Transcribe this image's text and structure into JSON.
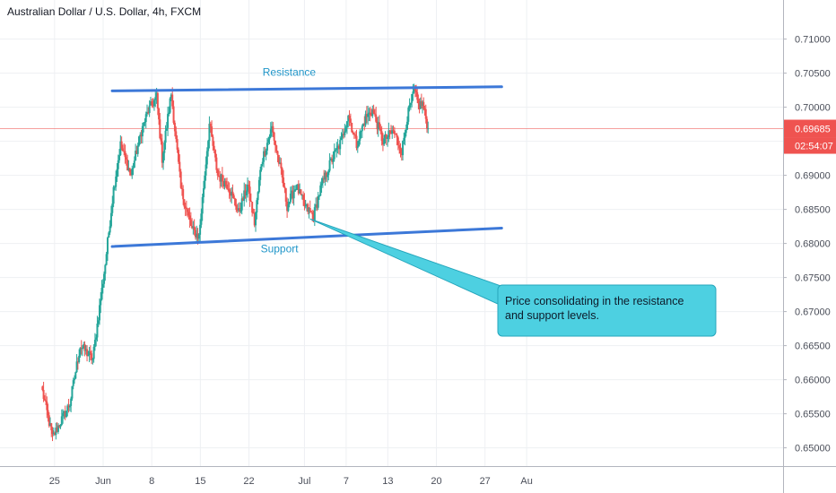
{
  "chart_data": {
    "type": "candlestick",
    "title": "Australian Dollar / U.S. Dollar, 4h, FXCM",
    "ylim": [
      0.646,
      0.7117
    ],
    "y_ticks": [
      "0.65000",
      "0.65500",
      "0.66000",
      "0.66500",
      "0.67000",
      "0.67500",
      "0.68000",
      "0.68500",
      "0.69000",
      "0.69500",
      "0.70000",
      "0.70500",
      "0.71000"
    ],
    "x_ticks": [
      {
        "label": "25",
        "day": -7
      },
      {
        "label": "Jun",
        "day": 0
      },
      {
        "label": "8",
        "day": 7
      },
      {
        "label": "15",
        "day": 14
      },
      {
        "label": "22",
        "day": 21
      },
      {
        "label": "Jul",
        "day": 29
      },
      {
        "label": "7",
        "day": 35
      },
      {
        "label": "13",
        "day": 41
      },
      {
        "label": "20",
        "day": 48
      },
      {
        "label": "27",
        "day": 55
      },
      {
        "label": "Au",
        "day": 61
      }
    ],
    "last_price": {
      "value": 0.69685,
      "label": "0.69685",
      "countdown": "02:54:07"
    },
    "anchors": [
      {
        "day": -8.9,
        "price": 0.659
      },
      {
        "day": -7.3,
        "price": 0.6515
      },
      {
        "day": -4.8,
        "price": 0.6565
      },
      {
        "day": -3.3,
        "price": 0.665
      },
      {
        "day": -1.5,
        "price": 0.663
      },
      {
        "day": 0.3,
        "price": 0.677
      },
      {
        "day": 1.5,
        "price": 0.688
      },
      {
        "day": 2.5,
        "price": 0.6945
      },
      {
        "day": 4.0,
        "price": 0.69
      },
      {
        "day": 5.5,
        "price": 0.6965
      },
      {
        "day": 6.5,
        "price": 0.6995
      },
      {
        "day": 7.7,
        "price": 0.7015
      },
      {
        "day": 8.5,
        "price": 0.6925
      },
      {
        "day": 9.8,
        "price": 0.702
      },
      {
        "day": 11.2,
        "price": 0.688
      },
      {
        "day": 12.8,
        "price": 0.682
      },
      {
        "day": 13.8,
        "price": 0.681
      },
      {
        "day": 15.3,
        "price": 0.6975
      },
      {
        "day": 16.5,
        "price": 0.69
      },
      {
        "day": 18.0,
        "price": 0.6885
      },
      {
        "day": 19.5,
        "price": 0.6845
      },
      {
        "day": 20.8,
        "price": 0.6885
      },
      {
        "day": 21.8,
        "price": 0.683
      },
      {
        "day": 22.8,
        "price": 0.692
      },
      {
        "day": 24.3,
        "price": 0.697
      },
      {
        "day": 25.8,
        "price": 0.6895
      },
      {
        "day": 26.5,
        "price": 0.6855
      },
      {
        "day": 27.8,
        "price": 0.6885
      },
      {
        "day": 29.0,
        "price": 0.6855
      },
      {
        "day": 30.3,
        "price": 0.684
      },
      {
        "day": 31.3,
        "price": 0.688
      },
      {
        "day": 32.8,
        "price": 0.692
      },
      {
        "day": 34.3,
        "price": 0.695
      },
      {
        "day": 35.3,
        "price": 0.699
      },
      {
        "day": 36.5,
        "price": 0.6945
      },
      {
        "day": 37.8,
        "price": 0.6985
      },
      {
        "day": 38.8,
        "price": 0.6995
      },
      {
        "day": 40.3,
        "price": 0.695
      },
      {
        "day": 41.8,
        "price": 0.6965
      },
      {
        "day": 43.0,
        "price": 0.6935
      },
      {
        "day": 43.8,
        "price": 0.6985
      },
      {
        "day": 44.8,
        "price": 0.7025
      },
      {
        "day": 45.4,
        "price": 0.7003
      },
      {
        "day": 46.0,
        "price": 0.7005
      },
      {
        "day": 46.8,
        "price": 0.6969
      }
    ],
    "trend_lines": [
      {
        "name": "resistance-line",
        "x1": 1.3,
        "y1": 0.7024,
        "x2": 57.4,
        "y2": 0.703
      },
      {
        "name": "support-line",
        "x1": 1.3,
        "y1": 0.67955,
        "x2": 57.4,
        "y2": 0.68225
      }
    ],
    "annotations": [
      {
        "text": "Resistance",
        "day": 26.8,
        "price": 0.7046
      },
      {
        "text": "Support",
        "day": 25.4,
        "price": 0.6787
      }
    ],
    "callout": {
      "text": "Price consolidating in the resistance and support levels.",
      "pointer_day": 29.8,
      "pointer_price": 0.6836,
      "fill": "#4dd0e1",
      "border": "#26a6bc"
    },
    "colors": {
      "up": "#26a69a",
      "down": "#ef5350",
      "trend_line": "#3c78d8",
      "label": "#2196c9"
    }
  }
}
